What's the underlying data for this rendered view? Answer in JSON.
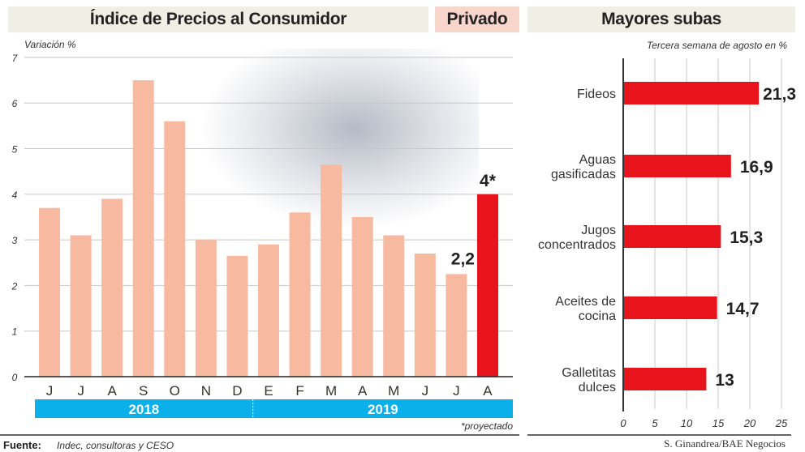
{
  "headers": {
    "left": "Índice de Precios al Consumidor",
    "middle": "Privado",
    "right": "Mayores subas"
  },
  "colors": {
    "bar": "#f7b9a0",
    "highlight": "#e8141c",
    "year_band": "#0bb0ea",
    "header_bg": "#efefe6",
    "privado_bg": "#f9d6cc"
  },
  "chart_data": [
    {
      "type": "bar",
      "ylabel": "Variación %",
      "ylim": [
        0,
        7
      ],
      "yticks": [
        0,
        1,
        2,
        3,
        4,
        5,
        6,
        7
      ],
      "categories": [
        "J",
        "J",
        "A",
        "S",
        "O",
        "N",
        "D",
        "E",
        "F",
        "M",
        "A",
        "M",
        "J",
        "J",
        "A"
      ],
      "values": [
        3.7,
        3.1,
        3.9,
        6.5,
        5.6,
        3.0,
        2.65,
        2.9,
        3.6,
        4.65,
        3.5,
        3.1,
        2.7,
        2.25,
        4.0
      ],
      "highlight_index": 14,
      "data_labels": [
        {
          "index": 13,
          "text": "2,2"
        },
        {
          "index": 14,
          "text": "4*"
        }
      ],
      "year_groups": [
        {
          "label": "2018",
          "count": 7
        },
        {
          "label": "2019",
          "count": 8
        }
      ],
      "note": "*proyectado",
      "grid": true
    },
    {
      "type": "bar",
      "orientation": "horizontal",
      "title": "Tercera semana de agosto en %",
      "categories": [
        [
          "Fideos"
        ],
        [
          "Aguas",
          "gasificadas"
        ],
        [
          "Jugos",
          "concentrados"
        ],
        [
          "Aceites de",
          "cocina"
        ],
        [
          "Galletitas",
          "dulces"
        ]
      ],
      "values": [
        21.3,
        16.9,
        15.3,
        14.7,
        13
      ],
      "data_labels": [
        "21,3",
        "16,9",
        "15,3",
        "14,7",
        "13"
      ],
      "xlim": [
        0,
        25
      ],
      "xticks": [
        0,
        5,
        10,
        15,
        20,
        25
      ],
      "grid": true
    }
  ],
  "footer": {
    "source_label": "Fuente:",
    "source_text": "Indec, consultoras y CESO",
    "credit": "S. Ginandrea/BAE Negocios"
  },
  "photo": {
    "icon": "supermarket-photo"
  }
}
